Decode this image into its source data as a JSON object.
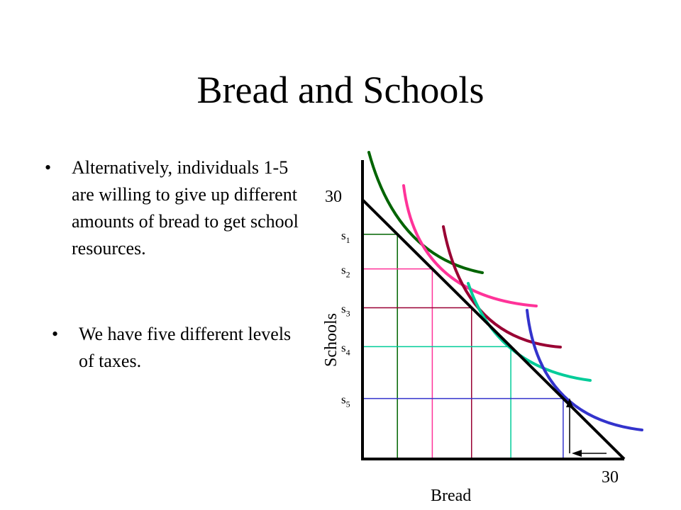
{
  "slide": {
    "title": "Bread and Schools",
    "bullets_top": [
      "Alternatively, individuals 1-5 are willing to give up different amounts of bread to get school resources."
    ],
    "bullets_bottom": [
      "We have five different levels of taxes."
    ],
    "bullet_glyph": "•"
  },
  "diagram": {
    "y_axis_label": "Schools",
    "x_axis_label": "Bread",
    "y_max_label": "30",
    "x_max_label": "30",
    "budget_line": {
      "x0": 0,
      "y0": 30,
      "x1": 30,
      "y1": 0
    },
    "levels": [
      {
        "label": "s",
        "subscript": "1",
        "x": 4,
        "y": 26,
        "color": "#006400"
      },
      {
        "label": "s",
        "subscript": "2",
        "x": 8,
        "y": 22,
        "color": "#ff3399"
      },
      {
        "label": "s",
        "subscript": "3",
        "x": 12.5,
        "y": 17.5,
        "color": "#990033"
      },
      {
        "label": "s",
        "subscript": "4",
        "x": 17,
        "y": 13,
        "color": "#00cc99"
      },
      {
        "label": "s",
        "subscript": "5",
        "x": 23,
        "y": 7,
        "color": "#3333cc"
      }
    ],
    "indifference_curves": [
      {
        "color": "#006400"
      },
      {
        "color": "#ff3399"
      },
      {
        "color": "#990033"
      },
      {
        "color": "#00cc99"
      },
      {
        "color": "#3333cc"
      }
    ]
  }
}
